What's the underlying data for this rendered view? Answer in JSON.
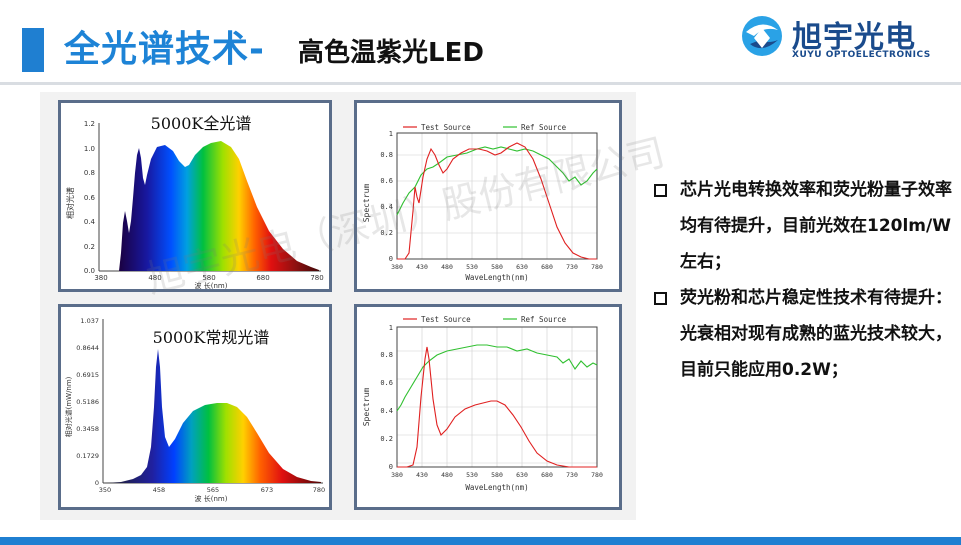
{
  "title": {
    "main": "全光谱技术-",
    "sub": "高色温紫光LED"
  },
  "logo": {
    "name": "旭宇光电",
    "sub": "XUYU OPTOELECTRONICS"
  },
  "charts": {
    "full": {
      "title": "5000K全光谱",
      "ylabel": "相对光谱",
      "xlabel": "波 长(nm)",
      "yticks": [
        "0.0",
        "0.2",
        "0.4",
        "0.6",
        "0.8",
        "1.0",
        "1.2"
      ],
      "xticks": [
        "380",
        "480",
        "580",
        "680",
        "780"
      ]
    },
    "conventional": {
      "title": "5000K常规光谱",
      "ylabel": "相对光谱(mW/nm)",
      "xlabel": "波 长(nm)",
      "yticks": [
        "0",
        "0.1729",
        "0.3458",
        "0.5186",
        "0.6915",
        "0.8644",
        "1.037"
      ],
      "xticks": [
        "350",
        "458",
        "565",
        "673",
        "780"
      ]
    },
    "compare_top": {
      "legend": [
        "Test Source",
        "Ref Source"
      ],
      "ylabel": "Spectrum",
      "xlabel": "WaveLength(nm)",
      "yticks": [
        "0",
        "0.2",
        "0.4",
        "0.6",
        "0.8",
        "1"
      ],
      "xticks": [
        "380",
        "430",
        "480",
        "530",
        "580",
        "630",
        "680",
        "730",
        "780"
      ]
    },
    "compare_bottom": {
      "legend": [
        "Test Source",
        "Ref Source"
      ],
      "ylabel": "Spectrum",
      "xlabel": "WaveLength(nm)",
      "yticks": [
        "0",
        "0.2",
        "0.4",
        "0.6",
        "0.8",
        "1"
      ],
      "xticks": [
        "380",
        "430",
        "480",
        "530",
        "580",
        "630",
        "680",
        "730",
        "780"
      ]
    }
  },
  "bullets": [
    "芯片光电转换效率和荧光粉量子效率均有待提升，目前光效在120lm/W左右；",
    "荧光粉和芯片稳定性技术有待提升：光衰相对现有成熟的蓝光技术较大，目前只能应用0.2W；"
  ],
  "watermark": "旭宇光电（深圳）股份有限公司",
  "colors": {
    "accent": "#1f7fd1",
    "title": "#1d83d6",
    "test": "#e02020",
    "ref": "#30c030"
  }
}
